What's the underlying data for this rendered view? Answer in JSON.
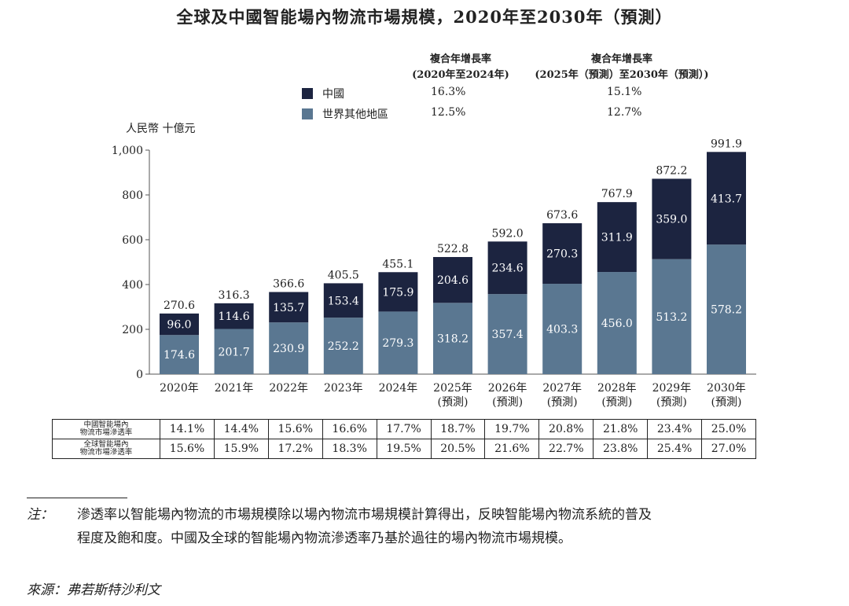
{
  "title": "全球及中國智能場內物流市場規模，2020年至2030年（預測）",
  "legend": {
    "col1_title": [
      "複合年增長率",
      "(2020年至2024年)"
    ],
    "col2_title": [
      "複合年增長率",
      "(2025年（預測）至2030年（預測）)"
    ],
    "rows": [
      {
        "name": "中國",
        "color": "#1c2440",
        "cagr1": "16.3%",
        "cagr2": "15.1%"
      },
      {
        "name": "世界其他地區",
        "color": "#5a7791",
        "cagr1": "12.5%",
        "cagr2": "12.7%"
      }
    ]
  },
  "chart_data": {
    "type": "bar",
    "stacked": true,
    "ylabel": "人民幣 十億元",
    "ylim": [
      0,
      1000
    ],
    "yticks": [
      0,
      200,
      400,
      600,
      800,
      1000
    ],
    "ytick_labels": [
      "0",
      "200",
      "400",
      "600",
      "800",
      "1,000"
    ],
    "categories": [
      [
        "2020年"
      ],
      [
        "2021年"
      ],
      [
        "2022年"
      ],
      [
        "2023年"
      ],
      [
        "2024年"
      ],
      [
        "2025年",
        "(預測)"
      ],
      [
        "2026年",
        "(預測)"
      ],
      [
        "2027年",
        "(預測)"
      ],
      [
        "2028年",
        "(預測)"
      ],
      [
        "2029年",
        "(預測)"
      ],
      [
        "2030年",
        "(預測)"
      ]
    ],
    "series": [
      {
        "name": "世界其他地區",
        "color": "#5a7791",
        "values": [
          174.6,
          201.7,
          230.9,
          252.2,
          279.3,
          318.2,
          357.4,
          403.3,
          456.0,
          513.2,
          578.2
        ],
        "labels": [
          "174.6",
          "201.7",
          "230.9",
          "252.2",
          "279.3",
          "318.2",
          "357.4",
          "403.3",
          "456.0",
          "513.2",
          "578.2"
        ]
      },
      {
        "name": "中國",
        "color": "#1c2440",
        "values": [
          96.0,
          114.6,
          135.7,
          153.4,
          175.9,
          204.6,
          234.6,
          270.3,
          311.9,
          359.0,
          413.7
        ],
        "labels": [
          "96.0",
          "114.6",
          "135.7",
          "153.4",
          "175.9",
          "204.6",
          "234.6",
          "270.3",
          "311.9",
          "359.0",
          "413.7"
        ]
      }
    ],
    "totals": [
      270.6,
      316.3,
      366.6,
      405.5,
      455.1,
      522.8,
      592.0,
      673.6,
      767.9,
      872.2,
      991.9
    ],
    "total_labels": [
      "270.6",
      "316.3",
      "366.6",
      "405.5",
      "455.1",
      "522.8",
      "592.0",
      "673.6",
      "767.9",
      "872.2",
      "991.9"
    ]
  },
  "penetration_table": {
    "rows": [
      {
        "label": [
          "中國智能場內",
          "物流市場滲透率"
        ],
        "values": [
          "14.1%",
          "14.4%",
          "15.6%",
          "16.6%",
          "17.7%",
          "18.7%",
          "19.7%",
          "20.8%",
          "21.8%",
          "23.4%",
          "25.0%"
        ]
      },
      {
        "label": [
          "全球智能場內",
          "物流市場滲透率"
        ],
        "values": [
          "15.6%",
          "15.9%",
          "17.2%",
          "18.3%",
          "19.5%",
          "20.5%",
          "21.6%",
          "22.7%",
          "23.8%",
          "25.4%",
          "27.0%"
        ]
      }
    ]
  },
  "note": {
    "label": "注：",
    "lines": [
      "滲透率以智能場內物流的市場規模除以場內物流市場規模計算得出，反映智能場內物流系統的普及",
      "程度及飽和度。中國及全球的智能場內物流滲透率乃基於過往的場內物流市場規模。"
    ]
  },
  "source": "來源：弗若斯特沙利文"
}
